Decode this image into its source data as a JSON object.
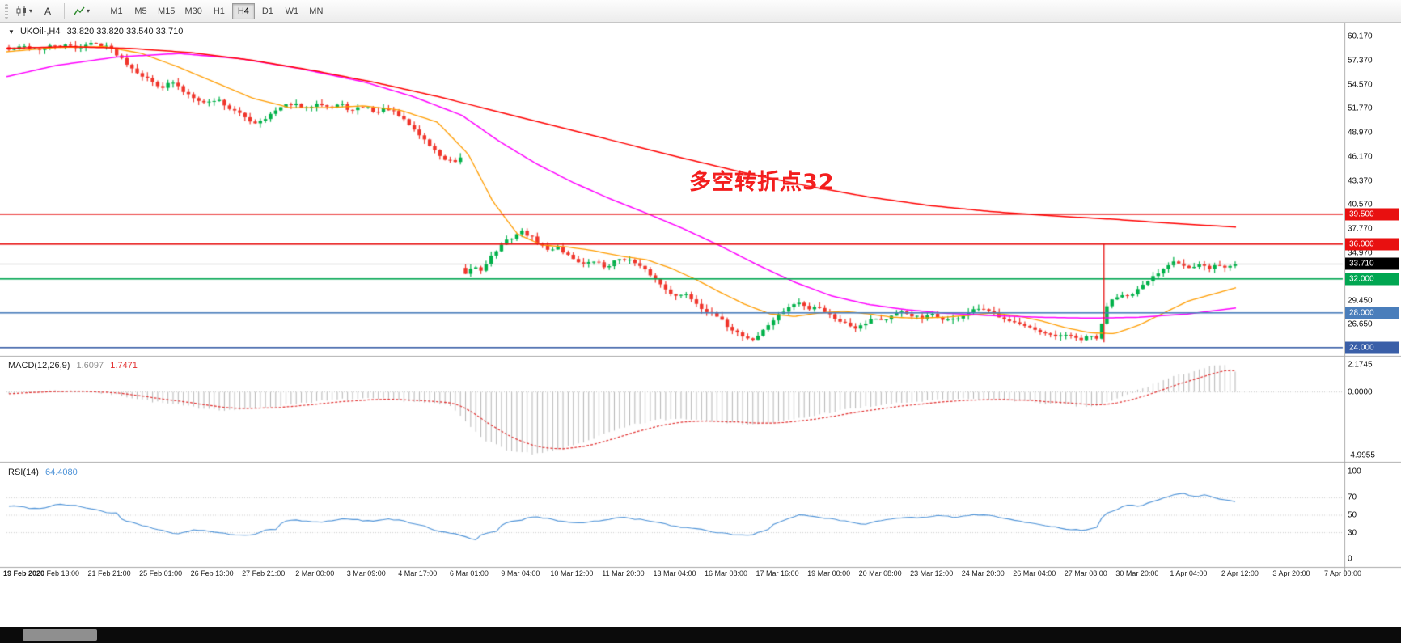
{
  "toolbar": {
    "cursor_label": "A",
    "timeframes": [
      "M1",
      "M5",
      "M15",
      "M30",
      "H1",
      "H4",
      "D1",
      "W1",
      "MN"
    ],
    "active_timeframe": "H4"
  },
  "chart": {
    "symbol_title": "UKOil-,H4",
    "ohlc": "33.820 33.820 33.540 33.710",
    "annotation": {
      "text": "多空转折点32",
      "color": "#f31e1e"
    },
    "current_price": {
      "label": "33.710",
      "value": 33.71
    },
    "hlines": [
      {
        "label": "39.500",
        "price": 39.5,
        "color": "#e81010"
      },
      {
        "label": "36.000",
        "price": 36.0,
        "color": "#e81010"
      },
      {
        "label": "32.000",
        "price": 32.0,
        "color": "#00a651"
      },
      {
        "label": "28.000",
        "price": 28.0,
        "color": "#4a7ebb"
      },
      {
        "label": "24.000",
        "price": 24.0,
        "color": "#3a5fa8"
      }
    ],
    "price_axis": {
      "ticks": [
        "60.170",
        "57.370",
        "54.570",
        "51.770",
        "48.970",
        "46.170",
        "43.370",
        "40.570",
        "37.770",
        "34.970",
        "29.450",
        "26.650"
      ]
    },
    "date_axis": [
      "19 Feb 2020",
      "20 Feb 13:00",
      "21 Feb 21:00",
      "25 Feb 01:00",
      "26 Feb 13:00",
      "27 Feb 21:00",
      "2 Mar 00:00",
      "3 Mar 09:00",
      "4 Mar 17:00",
      "6 Mar 01:00",
      "9 Mar 04:00",
      "10 Mar 12:00",
      "11 Mar 20:00",
      "13 Mar 04:00",
      "16 Mar 08:00",
      "17 Mar 16:00",
      "19 Mar 00:00",
      "20 Mar 08:00",
      "23 Mar 12:00",
      "24 Mar 20:00",
      "26 Mar 04:00",
      "27 Mar 08:00",
      "30 Mar 20:00",
      "1 Apr 04:00",
      "2 Apr 12:00",
      "3 Apr 20:00",
      "7 Apr 00:00"
    ]
  },
  "macd": {
    "label": "MACD(12,26,9)",
    "value_main": "1.6097",
    "value_signal": "1.7471",
    "axis": [
      "2.1745",
      "0.0000",
      "-4.9955"
    ]
  },
  "rsi": {
    "label": "RSI(14)",
    "value": "64.4080",
    "axis": [
      "100",
      "70",
      "50",
      "30",
      "0"
    ]
  },
  "colors": {
    "up": "#02b24a",
    "down": "#f0352b",
    "ma_fast": "#ff9d00",
    "ma_mid": "#ff00ff",
    "ma_slow": "#ff0000",
    "macd_hist": "#b5b5b5",
    "macd_signal": "#e23030",
    "rsi_line": "#4e93d8",
    "bid_line": "#a6a6a6",
    "spike": "#e81010"
  },
  "chart_data": {
    "type": "candlestick",
    "bars": 240,
    "ylim": [
      23.2,
      61.6
    ],
    "last_close": 33.71,
    "price_path_anchors": [
      [
        0.0,
        58.6
      ],
      [
        0.012,
        59.0
      ],
      [
        0.025,
        58.7
      ],
      [
        0.04,
        59.2
      ],
      [
        0.055,
        58.9
      ],
      [
        0.068,
        59.4
      ],
      [
        0.08,
        59.1
      ],
      [
        0.09,
        57.9
      ],
      [
        0.1,
        56.6
      ],
      [
        0.11,
        55.5
      ],
      [
        0.118,
        54.8
      ],
      [
        0.126,
        54.3
      ],
      [
        0.133,
        54.9
      ],
      [
        0.142,
        53.8
      ],
      [
        0.152,
        53.1
      ],
      [
        0.16,
        52.4
      ],
      [
        0.17,
        52.9
      ],
      [
        0.18,
        51.8
      ],
      [
        0.19,
        51.0
      ],
      [
        0.2,
        50.1
      ],
      [
        0.21,
        50.8
      ],
      [
        0.222,
        51.9
      ],
      [
        0.231,
        52.4
      ],
      [
        0.242,
        51.7
      ],
      [
        0.252,
        52.6
      ],
      [
        0.262,
        51.9
      ],
      [
        0.27,
        52.3
      ],
      [
        0.28,
        51.5
      ],
      [
        0.29,
        52.1
      ],
      [
        0.3,
        51.3
      ],
      [
        0.308,
        51.9
      ],
      [
        0.318,
        50.9
      ],
      [
        0.327,
        49.8
      ],
      [
        0.338,
        48.3
      ],
      [
        0.347,
        46.9
      ],
      [
        0.356,
        45.8
      ],
      [
        0.364,
        45.5
      ],
      [
        0.368,
        45.9
      ],
      [
        0.373,
        32.4
      ],
      [
        0.378,
        33.5
      ],
      [
        0.385,
        33.0
      ],
      [
        0.392,
        34.4
      ],
      [
        0.399,
        35.5
      ],
      [
        0.406,
        36.4
      ],
      [
        0.413,
        37.1
      ],
      [
        0.419,
        37.5
      ],
      [
        0.426,
        36.8
      ],
      [
        0.433,
        36.0
      ],
      [
        0.44,
        35.2
      ],
      [
        0.447,
        35.8
      ],
      [
        0.454,
        34.9
      ],
      [
        0.462,
        34.2
      ],
      [
        0.47,
        33.6
      ],
      [
        0.478,
        34.1
      ],
      [
        0.486,
        33.3
      ],
      [
        0.493,
        33.9
      ],
      [
        0.5,
        34.5
      ],
      [
        0.508,
        34.0
      ],
      [
        0.515,
        33.3
      ],
      [
        0.523,
        32.5
      ],
      [
        0.53,
        31.5
      ],
      [
        0.538,
        30.6
      ],
      [
        0.545,
        29.8
      ],
      [
        0.552,
        30.3
      ],
      [
        0.56,
        29.2
      ],
      [
        0.568,
        28.3
      ],
      [
        0.577,
        27.6
      ],
      [
        0.584,
        26.7
      ],
      [
        0.592,
        25.9
      ],
      [
        0.6,
        25.2
      ],
      [
        0.607,
        24.9
      ],
      [
        0.614,
        25.8
      ],
      [
        0.621,
        26.9
      ],
      [
        0.629,
        27.9
      ],
      [
        0.637,
        28.8
      ],
      [
        0.644,
        29.2
      ],
      [
        0.652,
        28.5
      ],
      [
        0.659,
        28.9
      ],
      [
        0.666,
        28.1
      ],
      [
        0.674,
        27.4
      ],
      [
        0.682,
        26.8
      ],
      [
        0.69,
        26.3
      ],
      [
        0.698,
        26.9
      ],
      [
        0.706,
        27.5
      ],
      [
        0.713,
        27.1
      ],
      [
        0.721,
        27.7
      ],
      [
        0.729,
        28.1
      ],
      [
        0.737,
        27.7
      ],
      [
        0.745,
        27.3
      ],
      [
        0.752,
        27.8
      ],
      [
        0.76,
        27.4
      ],
      [
        0.768,
        27.1
      ],
      [
        0.776,
        27.6
      ],
      [
        0.784,
        28.1
      ],
      [
        0.791,
        28.5
      ],
      [
        0.799,
        28.1
      ],
      [
        0.807,
        27.7
      ],
      [
        0.814,
        27.3
      ],
      [
        0.822,
        26.8
      ],
      [
        0.83,
        26.3
      ],
      [
        0.837,
        25.9
      ],
      [
        0.845,
        25.5
      ],
      [
        0.853,
        25.2
      ],
      [
        0.86,
        25.6
      ],
      [
        0.868,
        25.1
      ],
      [
        0.875,
        24.9
      ],
      [
        0.882,
        25.3
      ],
      [
        0.889,
        25.0
      ],
      [
        0.894,
        28.7
      ],
      [
        0.9,
        29.7
      ],
      [
        0.907,
        30.3
      ],
      [
        0.914,
        29.8
      ],
      [
        0.922,
        30.8
      ],
      [
        0.929,
        31.7
      ],
      [
        0.936,
        32.6
      ],
      [
        0.943,
        33.4
      ],
      [
        0.95,
        34.2
      ],
      [
        0.957,
        33.6
      ],
      [
        0.964,
        33.1
      ],
      [
        0.971,
        33.6
      ],
      [
        0.978,
        33.2
      ],
      [
        0.985,
        33.6
      ],
      [
        0.992,
        33.3
      ],
      [
        1.0,
        33.71
      ]
    ],
    "spike": {
      "f": 0.893,
      "high": 36.0,
      "low": 24.6
    },
    "ma_fast_anchors": [
      [
        0.0,
        58.4
      ],
      [
        0.04,
        58.9
      ],
      [
        0.08,
        59.0
      ],
      [
        0.11,
        58.2
      ],
      [
        0.14,
        56.6
      ],
      [
        0.17,
        54.8
      ],
      [
        0.2,
        53.0
      ],
      [
        0.23,
        51.9
      ],
      [
        0.26,
        51.9
      ],
      [
        0.29,
        52.1
      ],
      [
        0.32,
        51.6
      ],
      [
        0.35,
        50.2
      ],
      [
        0.375,
        46.5
      ],
      [
        0.395,
        41.0
      ],
      [
        0.415,
        37.2
      ],
      [
        0.435,
        35.9
      ],
      [
        0.455,
        35.7
      ],
      [
        0.475,
        35.3
      ],
      [
        0.5,
        34.6
      ],
      [
        0.52,
        34.2
      ],
      [
        0.54,
        33.2
      ],
      [
        0.56,
        31.9
      ],
      [
        0.58,
        30.4
      ],
      [
        0.6,
        29.0
      ],
      [
        0.62,
        27.9
      ],
      [
        0.64,
        27.6
      ],
      [
        0.66,
        28.0
      ],
      [
        0.68,
        28.2
      ],
      [
        0.7,
        27.9
      ],
      [
        0.72,
        27.5
      ],
      [
        0.74,
        27.4
      ],
      [
        0.76,
        27.5
      ],
      [
        0.78,
        27.7
      ],
      [
        0.8,
        28.0
      ],
      [
        0.82,
        27.7
      ],
      [
        0.84,
        27.1
      ],
      [
        0.86,
        26.3
      ],
      [
        0.88,
        25.7
      ],
      [
        0.9,
        25.6
      ],
      [
        0.92,
        26.6
      ],
      [
        0.94,
        28.0
      ],
      [
        0.96,
        29.4
      ],
      [
        0.98,
        30.2
      ],
      [
        1.0,
        31.0
      ]
    ],
    "ma_mid_anchors": [
      [
        0.0,
        55.5
      ],
      [
        0.04,
        56.8
      ],
      [
        0.09,
        57.8
      ],
      [
        0.14,
        58.2
      ],
      [
        0.19,
        57.6
      ],
      [
        0.24,
        56.4
      ],
      [
        0.29,
        54.9
      ],
      [
        0.33,
        53.2
      ],
      [
        0.37,
        51.0
      ],
      [
        0.4,
        48.0
      ],
      [
        0.43,
        45.4
      ],
      [
        0.46,
        43.2
      ],
      [
        0.49,
        41.3
      ],
      [
        0.52,
        39.6
      ],
      [
        0.55,
        37.8
      ],
      [
        0.58,
        35.8
      ],
      [
        0.61,
        33.6
      ],
      [
        0.64,
        31.6
      ],
      [
        0.67,
        30.0
      ],
      [
        0.7,
        29.0
      ],
      [
        0.73,
        28.4
      ],
      [
        0.76,
        28.0
      ],
      [
        0.8,
        27.7
      ],
      [
        0.84,
        27.5
      ],
      [
        0.88,
        27.4
      ],
      [
        0.92,
        27.5
      ],
      [
        0.96,
        27.9
      ],
      [
        1.0,
        28.6
      ]
    ],
    "ma_slow_anchors": [
      [
        0.0,
        58.8
      ],
      [
        0.05,
        59.0
      ],
      [
        0.1,
        58.8
      ],
      [
        0.15,
        58.3
      ],
      [
        0.2,
        57.4
      ],
      [
        0.25,
        56.2
      ],
      [
        0.3,
        54.8
      ],
      [
        0.35,
        53.2
      ],
      [
        0.4,
        51.4
      ],
      [
        0.45,
        49.6
      ],
      [
        0.5,
        47.8
      ],
      [
        0.55,
        46.0
      ],
      [
        0.6,
        44.3
      ],
      [
        0.65,
        42.8
      ],
      [
        0.7,
        41.5
      ],
      [
        0.75,
        40.5
      ],
      [
        0.8,
        39.8
      ],
      [
        0.85,
        39.3
      ],
      [
        0.9,
        38.9
      ],
      [
        0.95,
        38.4
      ],
      [
        1.0,
        38.0
      ]
    ],
    "macd_anchors": [
      [
        0.0,
        -0.05
      ],
      [
        0.03,
        0.12
      ],
      [
        0.06,
        0.05
      ],
      [
        0.09,
        -0.25
      ],
      [
        0.12,
        -0.8
      ],
      [
        0.15,
        -1.2
      ],
      [
        0.18,
        -1.45
      ],
      [
        0.21,
        -1.2
      ],
      [
        0.24,
        -0.85
      ],
      [
        0.27,
        -0.6
      ],
      [
        0.3,
        -0.55
      ],
      [
        0.33,
        -0.75
      ],
      [
        0.36,
        -1.1
      ],
      [
        0.375,
        -2.6
      ],
      [
        0.39,
        -3.9
      ],
      [
        0.41,
        -4.7
      ],
      [
        0.43,
        -4.95
      ],
      [
        0.45,
        -4.55
      ],
      [
        0.47,
        -3.9
      ],
      [
        0.49,
        -3.2
      ],
      [
        0.51,
        -2.6
      ],
      [
        0.53,
        -2.2
      ],
      [
        0.55,
        -2.1
      ],
      [
        0.57,
        -2.25
      ],
      [
        0.59,
        -2.45
      ],
      [
        0.61,
        -2.55
      ],
      [
        0.63,
        -2.35
      ],
      [
        0.65,
        -2.0
      ],
      [
        0.67,
        -1.6
      ],
      [
        0.69,
        -1.3
      ],
      [
        0.71,
        -1.05
      ],
      [
        0.73,
        -0.85
      ],
      [
        0.75,
        -0.7
      ],
      [
        0.77,
        -0.6
      ],
      [
        0.79,
        -0.55
      ],
      [
        0.81,
        -0.6
      ],
      [
        0.83,
        -0.75
      ],
      [
        0.85,
        -0.95
      ],
      [
        0.87,
        -1.1
      ],
      [
        0.885,
        -1.15
      ],
      [
        0.9,
        -0.7
      ],
      [
        0.915,
        -0.1
      ],
      [
        0.93,
        0.5
      ],
      [
        0.945,
        1.05
      ],
      [
        0.96,
        1.5
      ],
      [
        0.975,
        1.9
      ],
      [
        0.99,
        2.15
      ],
      [
        1.0,
        1.61
      ]
    ],
    "rsi_anchors": [
      [
        0.0,
        61
      ],
      [
        0.02,
        57
      ],
      [
        0.04,
        64
      ],
      [
        0.06,
        59
      ],
      [
        0.08,
        52
      ],
      [
        0.1,
        40
      ],
      [
        0.12,
        33
      ],
      [
        0.135,
        28
      ],
      [
        0.15,
        34
      ],
      [
        0.17,
        29
      ],
      [
        0.19,
        26
      ],
      [
        0.21,
        34
      ],
      [
        0.23,
        45
      ],
      [
        0.25,
        41
      ],
      [
        0.27,
        47
      ],
      [
        0.29,
        43
      ],
      [
        0.31,
        46
      ],
      [
        0.33,
        39
      ],
      [
        0.35,
        31
      ],
      [
        0.365,
        27
      ],
      [
        0.378,
        22
      ],
      [
        0.39,
        31
      ],
      [
        0.41,
        43
      ],
      [
        0.425,
        49
      ],
      [
        0.44,
        45
      ],
      [
        0.46,
        41
      ],
      [
        0.48,
        44
      ],
      [
        0.5,
        48
      ],
      [
        0.52,
        43
      ],
      [
        0.54,
        37
      ],
      [
        0.56,
        33
      ],
      [
        0.58,
        29
      ],
      [
        0.6,
        26
      ],
      [
        0.615,
        34
      ],
      [
        0.63,
        44
      ],
      [
        0.645,
        51
      ],
      [
        0.66,
        48
      ],
      [
        0.68,
        43
      ],
      [
        0.695,
        39
      ],
      [
        0.71,
        45
      ],
      [
        0.725,
        49
      ],
      [
        0.74,
        46
      ],
      [
        0.755,
        50
      ],
      [
        0.77,
        47
      ],
      [
        0.785,
        52
      ],
      [
        0.8,
        49
      ],
      [
        0.815,
        45
      ],
      [
        0.83,
        40
      ],
      [
        0.845,
        37
      ],
      [
        0.86,
        34
      ],
      [
        0.875,
        32
      ],
      [
        0.885,
        36
      ],
      [
        0.895,
        55
      ],
      [
        0.91,
        63
      ],
      [
        0.92,
        59
      ],
      [
        0.93,
        67
      ],
      [
        0.945,
        73
      ],
      [
        0.955,
        77
      ],
      [
        0.965,
        70
      ],
      [
        0.975,
        74
      ],
      [
        0.985,
        68
      ],
      [
        1.0,
        64.4
      ]
    ]
  }
}
